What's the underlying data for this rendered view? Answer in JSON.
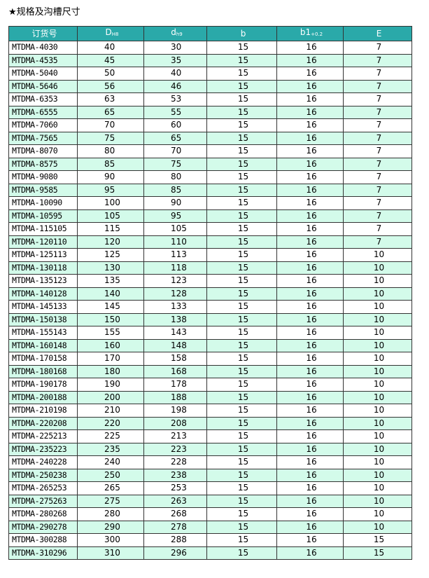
{
  "title": "★规格及沟槽尺寸",
  "table": {
    "header": [
      {
        "label": "订货号"
      },
      {
        "label": "D",
        "sub": "H8"
      },
      {
        "label": "d",
        "sub": "h9"
      },
      {
        "label": "b"
      },
      {
        "label": "b1",
        "sub": "+0.2"
      },
      {
        "label": "E"
      }
    ],
    "rows": [
      [
        "MTDMA-4030",
        40,
        30,
        15,
        16,
        7
      ],
      [
        "MTDMA-4535",
        45,
        35,
        15,
        16,
        7
      ],
      [
        "MTDMA-5040",
        50,
        40,
        15,
        16,
        7
      ],
      [
        "MTDMA-5646",
        56,
        46,
        15,
        16,
        7
      ],
      [
        "MTDMA-6353",
        63,
        53,
        15,
        16,
        7
      ],
      [
        "MTDMA-6555",
        65,
        55,
        15,
        16,
        7
      ],
      [
        "MTDMA-7060",
        70,
        60,
        15,
        16,
        7
      ],
      [
        "MTDMA-7565",
        75,
        65,
        15,
        16,
        7
      ],
      [
        "MTDMA-8070",
        80,
        70,
        15,
        16,
        7
      ],
      [
        "MTDMA-8575",
        85,
        75,
        15,
        16,
        7
      ],
      [
        "MTDMA-9080",
        90,
        80,
        15,
        16,
        7
      ],
      [
        "MTDMA-9585",
        95,
        85,
        15,
        16,
        7
      ],
      [
        "MTDMA-10090",
        100,
        90,
        15,
        16,
        7
      ],
      [
        "MTDMA-10595",
        105,
        95,
        15,
        16,
        7
      ],
      [
        "MTDMA-115105",
        115,
        105,
        15,
        16,
        7
      ],
      [
        "MTDMA-120110",
        120,
        110,
        15,
        16,
        7
      ],
      [
        "MTDMA-125113",
        125,
        113,
        15,
        16,
        10
      ],
      [
        "MTDMA-130118",
        130,
        118,
        15,
        16,
        10
      ],
      [
        "MTDMA-135123",
        135,
        123,
        15,
        16,
        10
      ],
      [
        "MTDMA-140128",
        140,
        128,
        15,
        16,
        10
      ],
      [
        "MTDMA-145133",
        145,
        133,
        15,
        16,
        10
      ],
      [
        "MTDMA-150138",
        150,
        138,
        15,
        16,
        10
      ],
      [
        "MTDMA-155143",
        155,
        143,
        15,
        16,
        10
      ],
      [
        "MTDMA-160148",
        160,
        148,
        15,
        16,
        10
      ],
      [
        "MTDMA-170158",
        170,
        158,
        15,
        16,
        10
      ],
      [
        "MTDMA-180168",
        180,
        168,
        15,
        16,
        10
      ],
      [
        "MTDMA-190178",
        190,
        178,
        15,
        16,
        10
      ],
      [
        "MTDMA-200188",
        200,
        188,
        15,
        16,
        10
      ],
      [
        "MTDMA-210198",
        210,
        198,
        15,
        16,
        10
      ],
      [
        "MTDMA-220208",
        220,
        208,
        15,
        16,
        10
      ],
      [
        "MTDMA-225213",
        225,
        213,
        15,
        16,
        10
      ],
      [
        "MTDMA-235223",
        235,
        223,
        15,
        16,
        10
      ],
      [
        "MTDMA-240228",
        240,
        228,
        15,
        16,
        10
      ],
      [
        "MTDMA-250238",
        250,
        238,
        15,
        16,
        10
      ],
      [
        "MTDMA-265253",
        265,
        253,
        15,
        16,
        10
      ],
      [
        "MTDMA-275263",
        275,
        263,
        15,
        16,
        10
      ],
      [
        "MTDMA-280268",
        280,
        268,
        15,
        16,
        10
      ],
      [
        "MTDMA-290278",
        290,
        278,
        15,
        16,
        10
      ],
      [
        "MTDMA-300288",
        300,
        288,
        15,
        16,
        15
      ],
      [
        "MTDMA-310296",
        310,
        296,
        15,
        16,
        15
      ]
    ]
  }
}
